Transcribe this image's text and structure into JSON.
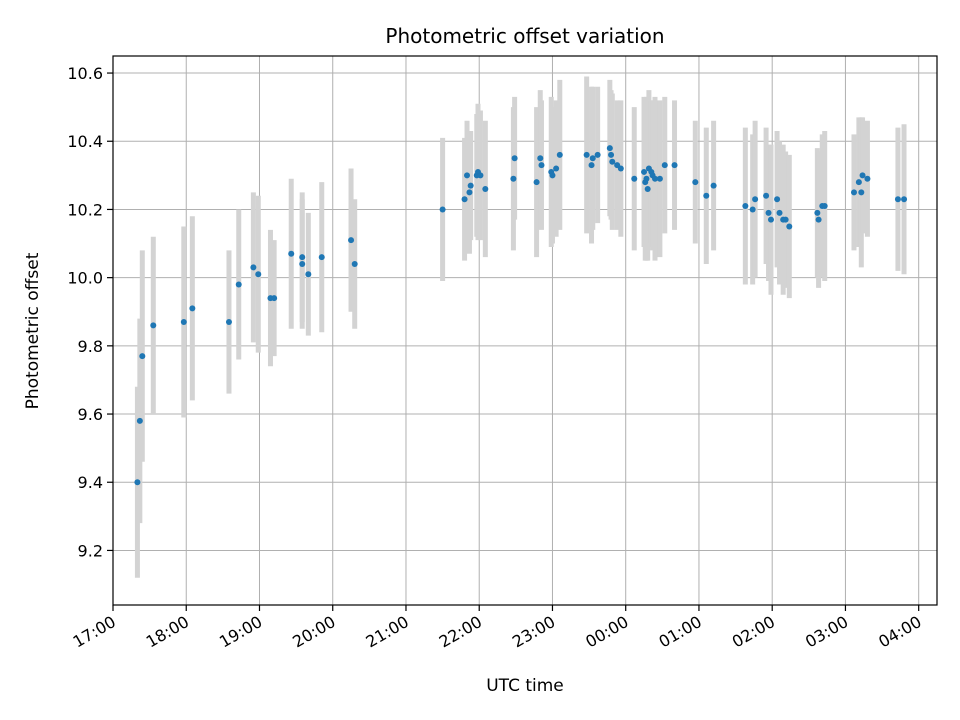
{
  "chart_data": {
    "type": "scatter",
    "title": "Photometric offset variation",
    "xlabel": "UTC time",
    "ylabel": "Photometric offset",
    "ylim": [
      9.04,
      10.65
    ],
    "ylog": false,
    "yticks": [
      9.2,
      9.4,
      9.6,
      9.8,
      10.0,
      10.2,
      10.4,
      10.6
    ],
    "ytick_labels": [
      "9.2",
      "9.4",
      "9.6",
      "9.8",
      "10.0",
      "10.2",
      "10.4",
      "10.6"
    ],
    "xlim": [
      "17:00",
      "04:15"
    ],
    "xticks": [
      "17:00",
      "18:00",
      "19:00",
      "20:00",
      "21:00",
      "22:00",
      "23:00",
      "00:00",
      "01:00",
      "02:00",
      "03:00",
      "04:00"
    ],
    "xtick_labels": [
      "17:00",
      "18:00",
      "19:00",
      "20:00",
      "21:00",
      "22:00",
      "23:00",
      "00:00",
      "01:00",
      "02:00",
      "03:00",
      "04:00"
    ],
    "x_tick_rotation_deg": 30,
    "grid": true,
    "marker_color": "#1f77b4",
    "errorbar_color": "#d3d3d3",
    "x": [
      "17:20",
      "17:22",
      "17:24",
      "17:33",
      "17:58",
      "18:05",
      "18:35",
      "18:43",
      "18:55",
      "18:59",
      "19:09",
      "19:12",
      "19:26",
      "19:35",
      "19:35",
      "19:40",
      "19:51",
      "20:15",
      "20:18",
      "21:30",
      "21:48",
      "21:50",
      "21:52",
      "21:53",
      "21:58",
      "21:59",
      "22:01",
      "22:05",
      "22:28",
      "22:29",
      "22:47",
      "22:50",
      "22:51",
      "22:59",
      "23:00",
      "23:03",
      "23:06",
      "23:28",
      "23:32",
      "23:33",
      "23:37",
      "23:47",
      "23:48",
      "23:49",
      "23:53",
      "23:56",
      "00:07",
      "00:15",
      "00:16",
      "00:17",
      "00:18",
      "00:19",
      "00:21",
      "00:22",
      "00:24",
      "00:28",
      "00:32",
      "00:40",
      "00:57",
      "01:06",
      "01:12",
      "01:38",
      "01:44",
      "01:46",
      "01:55",
      "01:57",
      "01:59",
      "02:04",
      "02:06",
      "02:09",
      "02:11",
      "02:14",
      "02:37",
      "02:38",
      "02:41",
      "02:43",
      "03:07",
      "03:11",
      "03:13",
      "03:14",
      "03:18",
      "03:43",
      "03:48"
    ],
    "y": [
      9.4,
      9.58,
      9.77,
      9.86,
      9.87,
      9.91,
      9.87,
      9.98,
      10.03,
      10.01,
      9.94,
      9.94,
      10.07,
      10.06,
      10.04,
      10.01,
      10.06,
      10.11,
      10.04,
      10.2,
      10.23,
      10.3,
      10.25,
      10.27,
      10.3,
      10.31,
      10.3,
      10.26,
      10.29,
      10.35,
      10.28,
      10.35,
      10.33,
      10.31,
      10.3,
      10.32,
      10.36,
      10.36,
      10.33,
      10.35,
      10.36,
      10.38,
      10.36,
      10.34,
      10.33,
      10.32,
      10.29,
      10.31,
      10.28,
      10.29,
      10.26,
      10.32,
      10.31,
      10.3,
      10.29,
      10.29,
      10.33,
      10.33,
      10.28,
      10.24,
      10.27,
      10.21,
      10.2,
      10.23,
      10.24,
      10.19,
      10.17,
      10.23,
      10.19,
      10.17,
      10.17,
      10.15,
      10.19,
      10.17,
      10.21,
      10.21,
      10.25,
      10.28,
      10.25,
      10.3,
      10.29,
      10.23,
      10.23
    ],
    "yerr": [
      0.28,
      0.3,
      0.31,
      0.26,
      0.28,
      0.27,
      0.21,
      0.22,
      0.22,
      0.23,
      0.2,
      0.17,
      0.22,
      0.19,
      0.19,
      0.18,
      0.22,
      0.21,
      0.19,
      0.21,
      0.18,
      0.16,
      0.18,
      0.16,
      0.18,
      0.2,
      0.19,
      0.2,
      0.21,
      0.18,
      0.22,
      0.2,
      0.19,
      0.22,
      0.2,
      0.2,
      0.22,
      0.23,
      0.23,
      0.21,
      0.2,
      0.2,
      0.19,
      0.2,
      0.19,
      0.2,
      0.21,
      0.22,
      0.23,
      0.24,
      0.21,
      0.23,
      0.21,
      0.22,
      0.24,
      0.23,
      0.2,
      0.19,
      0.18,
      0.2,
      0.19,
      0.23,
      0.22,
      0.23,
      0.2,
      0.2,
      0.22,
      0.2,
      0.21,
      0.22,
      0.2,
      0.21,
      0.19,
      0.2,
      0.21,
      0.22,
      0.17,
      0.19,
      0.22,
      0.17,
      0.17,
      0.21,
      0.22
    ]
  }
}
